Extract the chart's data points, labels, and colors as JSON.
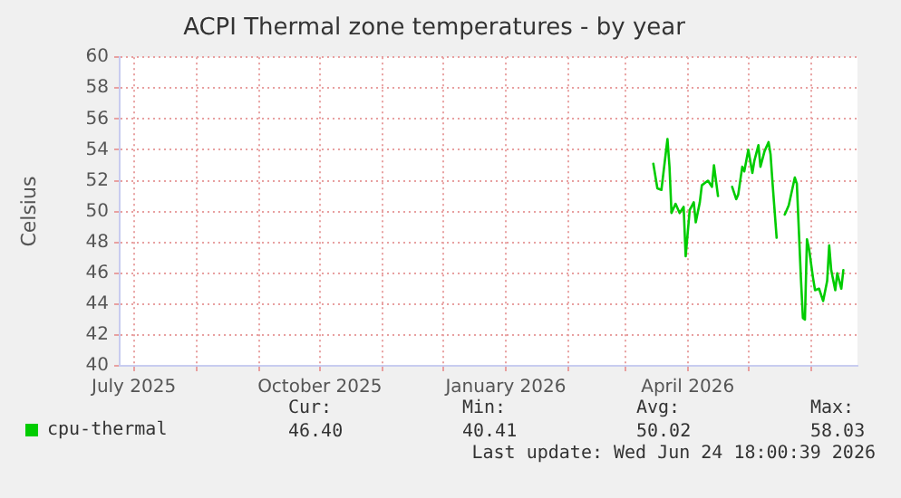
{
  "chart_data": {
    "type": "line",
    "title": "ACPI Thermal zone temperatures - by year",
    "ylabel": "Celsius",
    "xlim": [
      "2025-06-24",
      "2026-06-24"
    ],
    "xticks": [
      {
        "value": "2025-07-01",
        "label": "July 2025"
      },
      {
        "value": "2025-08-01",
        "label": null
      },
      {
        "value": "2025-09-01",
        "label": null
      },
      {
        "value": "2025-10-01",
        "label": "October 2025"
      },
      {
        "value": "2025-11-01",
        "label": null
      },
      {
        "value": "2025-12-01",
        "label": null
      },
      {
        "value": "2026-01-01",
        "label": "January 2026"
      },
      {
        "value": "2026-02-01",
        "label": null
      },
      {
        "value": "2026-03-01",
        "label": null
      },
      {
        "value": "2026-04-01",
        "label": "April 2026"
      },
      {
        "value": "2026-05-01",
        "label": null
      },
      {
        "value": "2026-06-01",
        "label": null
      }
    ],
    "ylim": [
      40,
      60
    ],
    "yticks": [
      40,
      42,
      44,
      46,
      48,
      50,
      52,
      54,
      56,
      58,
      60
    ],
    "x": [
      "2026-03-15",
      "2026-03-17",
      "2026-03-19",
      "2026-03-20",
      "2026-03-22",
      "2026-03-23",
      "2026-03-24",
      "2026-03-26",
      "2026-03-28",
      "2026-03-30",
      "2026-03-31",
      "2026-04-02",
      "2026-04-04",
      "2026-04-05",
      "2026-04-07",
      "2026-04-08",
      "2026-04-11",
      "2026-04-13",
      "2026-04-14",
      "2026-04-16",
      "2026-04-20",
      "2026-04-23",
      "2026-04-25",
      "2026-04-26",
      "2026-04-28",
      "2026-04-29",
      "2026-05-01",
      "2026-05-03",
      "2026-05-04",
      "2026-05-06",
      "2026-05-07",
      "2026-05-09",
      "2026-05-11",
      "2026-05-12",
      "2026-05-13",
      "2026-05-15",
      "2026-05-17",
      "2026-05-19",
      "2026-05-20",
      "2026-05-21",
      "2026-05-23",
      "2026-05-24",
      "2026-05-25",
      "2026-05-27",
      "2026-05-28",
      "2026-05-29",
      "2026-05-30",
      "2026-05-31",
      "2026-06-02",
      "2026-06-03",
      "2026-06-05",
      "2026-06-07",
      "2026-06-09",
      "2026-06-10",
      "2026-06-11",
      "2026-06-13",
      "2026-06-14",
      "2026-06-16",
      "2026-06-17"
    ],
    "series": [
      {
        "name": "cpu-thermal",
        "color": "#00cc00",
        "values": [
          53.1,
          51.5,
          51.4,
          52.5,
          54.7,
          52.9,
          49.9,
          50.5,
          49.9,
          50.3,
          47.1,
          50.1,
          50.6,
          49.3,
          50.6,
          51.7,
          52.0,
          51.6,
          53.0,
          51.0,
          null,
          51.6,
          50.8,
          51.1,
          52.9,
          52.6,
          54.0,
          52.5,
          53.3,
          54.3,
          52.9,
          53.9,
          54.5,
          53.7,
          51.8,
          48.3,
          null,
          49.8,
          50.1,
          50.4,
          51.6,
          52.2,
          51.8,
          45.7,
          43.1,
          43.0,
          48.2,
          47.6,
          45.7,
          44.9,
          45.0,
          44.2,
          45.5,
          47.8,
          46.2,
          44.9,
          46.0,
          45.0,
          46.2
        ]
      }
    ],
    "grid": true,
    "legend": "bottom",
    "marker": "none",
    "line_style": "solid",
    "annotations": [
      "Cur:",
      "46.40",
      "Min:",
      "40.41",
      "Avg:",
      "50.02",
      "Max:",
      "58.03",
      "Last update: Wed Jun 24 18:00:39 2026"
    ]
  }
}
